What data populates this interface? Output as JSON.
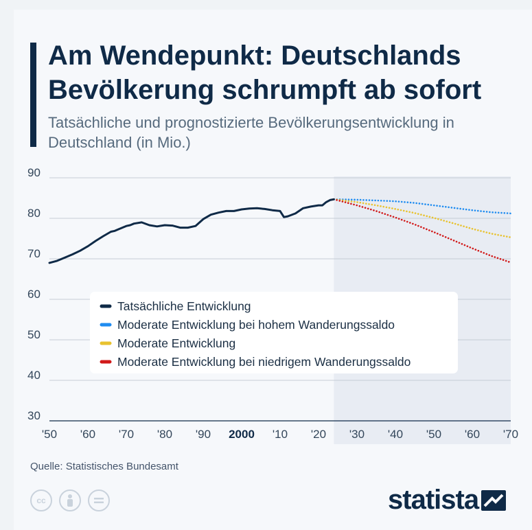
{
  "header": {
    "title": "Am Wendepunkt: Deutschlands Bevölkerung schrumpft ab sofort",
    "subtitle": "Tatsächliche und prognostizierte Bevölkerungsentwicklung in Deutschland (in Mio.)"
  },
  "footer": {
    "source": "Quelle: Statistisches Bundesamt",
    "logo_text": "statista",
    "license_icons": [
      "cc-icon",
      "attribution-icon",
      "no-derivatives-icon"
    ],
    "cc_label": "cc"
  },
  "colors": {
    "actual": "#0f2a47",
    "high": "#1f8cf0",
    "moderate": "#e8c22f",
    "low": "#d11a1a",
    "forecast_band": "#e8ecf3",
    "grid": "#c5ccd4"
  },
  "chart_data": {
    "type": "line",
    "title": "Am Wendepunkt: Deutschlands Bevölkerung schrumpft ab sofort",
    "subtitle": "Tatsächliche und prognostizierte Bevölkerungsentwicklung in Deutschland (in Mio.)",
    "xlim": [
      1950,
      2070
    ],
    "ylim": [
      30,
      90
    ],
    "grid": true,
    "y_ticks": [
      30,
      40,
      50,
      60,
      70,
      80,
      90
    ],
    "x_ticks": [
      {
        "value": 1950,
        "label": "'50",
        "bold": false
      },
      {
        "value": 1960,
        "label": "'60",
        "bold": false
      },
      {
        "value": 1970,
        "label": "'70",
        "bold": false
      },
      {
        "value": 1980,
        "label": "'80",
        "bold": false
      },
      {
        "value": 1990,
        "label": "'90",
        "bold": false
      },
      {
        "value": 2000,
        "label": "2000",
        "bold": true
      },
      {
        "value": 2010,
        "label": "'10",
        "bold": false
      },
      {
        "value": 2020,
        "label": "'20",
        "bold": false
      },
      {
        "value": 2030,
        "label": "'30",
        "bold": false
      },
      {
        "value": 2040,
        "label": "'40",
        "bold": false
      },
      {
        "value": 2050,
        "label": "'50",
        "bold": false
      },
      {
        "value": 2060,
        "label": "'60",
        "bold": false
      },
      {
        "value": 2070,
        "label": "'70",
        "bold": false
      }
    ],
    "forecast_start": 2024,
    "legend_position": "inside-left",
    "series": [
      {
        "name": "Tatsächliche Entwicklung",
        "color": "#0f2a47",
        "style": "solid",
        "x": [
          1950,
          1952,
          1954,
          1956,
          1958,
          1960,
          1962,
          1964,
          1966,
          1967,
          1968,
          1970,
          1971,
          1972,
          1974,
          1976,
          1978,
          1980,
          1982,
          1984,
          1986,
          1988,
          1990,
          1992,
          1994,
          1996,
          1998,
          2000,
          2002,
          2004,
          2006,
          2008,
          2010,
          2011,
          2012,
          2014,
          2016,
          2018,
          2020,
          2021,
          2022,
          2023,
          2024
        ],
        "y": [
          69.0,
          69.5,
          70.3,
          71.1,
          72.0,
          73.1,
          74.4,
          75.6,
          76.7,
          76.9,
          77.3,
          78.1,
          78.3,
          78.7,
          79.0,
          78.3,
          78.0,
          78.3,
          78.2,
          77.7,
          77.7,
          78.1,
          79.8,
          80.9,
          81.4,
          81.8,
          81.8,
          82.2,
          82.4,
          82.5,
          82.3,
          82.0,
          81.8,
          80.3,
          80.5,
          81.2,
          82.5,
          82.9,
          83.2,
          83.2,
          84.0,
          84.5,
          84.7
        ]
      },
      {
        "name": "Moderate Entwicklung bei hohem Wanderungssaldo",
        "color": "#1f8cf0",
        "style": "dotted",
        "x": [
          2024,
          2030,
          2035,
          2040,
          2045,
          2050,
          2055,
          2060,
          2065,
          2070
        ],
        "y": [
          84.7,
          84.6,
          84.4,
          84.2,
          83.8,
          83.2,
          82.6,
          82.0,
          81.5,
          81.2
        ]
      },
      {
        "name": "Moderate Entwicklung",
        "color": "#e8c22f",
        "style": "dotted",
        "x": [
          2024,
          2030,
          2035,
          2040,
          2045,
          2050,
          2055,
          2060,
          2065,
          2070
        ],
        "y": [
          84.7,
          84.0,
          83.2,
          82.3,
          81.3,
          80.1,
          78.8,
          77.4,
          76.2,
          75.3
        ]
      },
      {
        "name": "Moderate Entwicklung bei niedrigem Wanderungssaldo",
        "color": "#d11a1a",
        "style": "dotted",
        "x": [
          2024,
          2030,
          2035,
          2040,
          2045,
          2050,
          2055,
          2060,
          2065,
          2070
        ],
        "y": [
          84.7,
          83.2,
          81.8,
          80.2,
          78.5,
          76.6,
          74.6,
          72.6,
          70.7,
          69.1
        ]
      }
    ]
  }
}
